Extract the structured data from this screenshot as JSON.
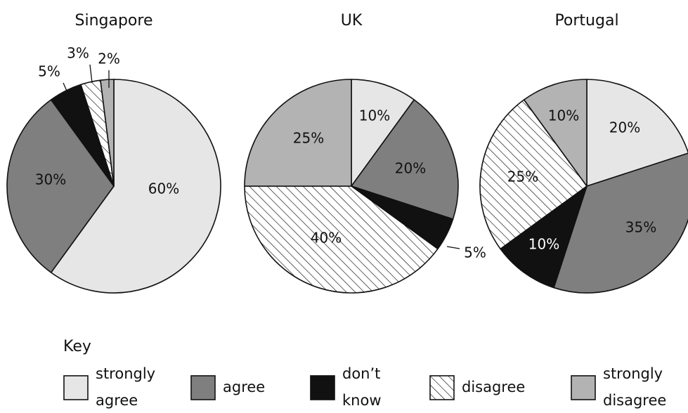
{
  "chart_data": [
    {
      "type": "pie",
      "title": "Singapore",
      "categories": [
        "strongly agree",
        "agree",
        "don't know",
        "disagree",
        "strongly disagree"
      ],
      "values": [
        60,
        30,
        5,
        3,
        2
      ],
      "labels": [
        "60%",
        "30%",
        "5%",
        "3%",
        "2%"
      ]
    },
    {
      "type": "pie",
      "title": "UK",
      "categories": [
        "strongly agree",
        "agree",
        "don't know",
        "disagree",
        "strongly disagree"
      ],
      "values": [
        10,
        20,
        5,
        40,
        25
      ],
      "labels": [
        "10%",
        "20%",
        "5%",
        "40%",
        "25%"
      ]
    },
    {
      "type": "pie",
      "title": "Portugal",
      "categories": [
        "strongly agree",
        "agree",
        "don't know",
        "disagree",
        "strongly disagree"
      ],
      "values": [
        20,
        35,
        10,
        25,
        10
      ],
      "labels": [
        "20%",
        "35%",
        "10%",
        "25%",
        "10%"
      ]
    }
  ],
  "key": {
    "title": "Key",
    "entries": [
      {
        "lines": [
          "strongly",
          "agree"
        ],
        "fill": "#e6e6e6",
        "pattern": false
      },
      {
        "lines": [
          "agree"
        ],
        "fill": "#7f7f7f",
        "pattern": false
      },
      {
        "lines": [
          "don’t",
          "know"
        ],
        "fill": "#111111",
        "pattern": false
      },
      {
        "lines": [
          "disagree"
        ],
        "fill": "#ffffff",
        "pattern": true
      },
      {
        "lines": [
          "strongly",
          "disagree"
        ],
        "fill": "#b3b3b3",
        "pattern": false
      }
    ]
  },
  "colors": {
    "strongly_agree": "#e6e6e6",
    "agree": "#7f7f7f",
    "dont_know": "#111111",
    "disagree_hatch": "#ffffff",
    "strongly_disagree": "#b3b3b3",
    "outline": "#111111"
  }
}
